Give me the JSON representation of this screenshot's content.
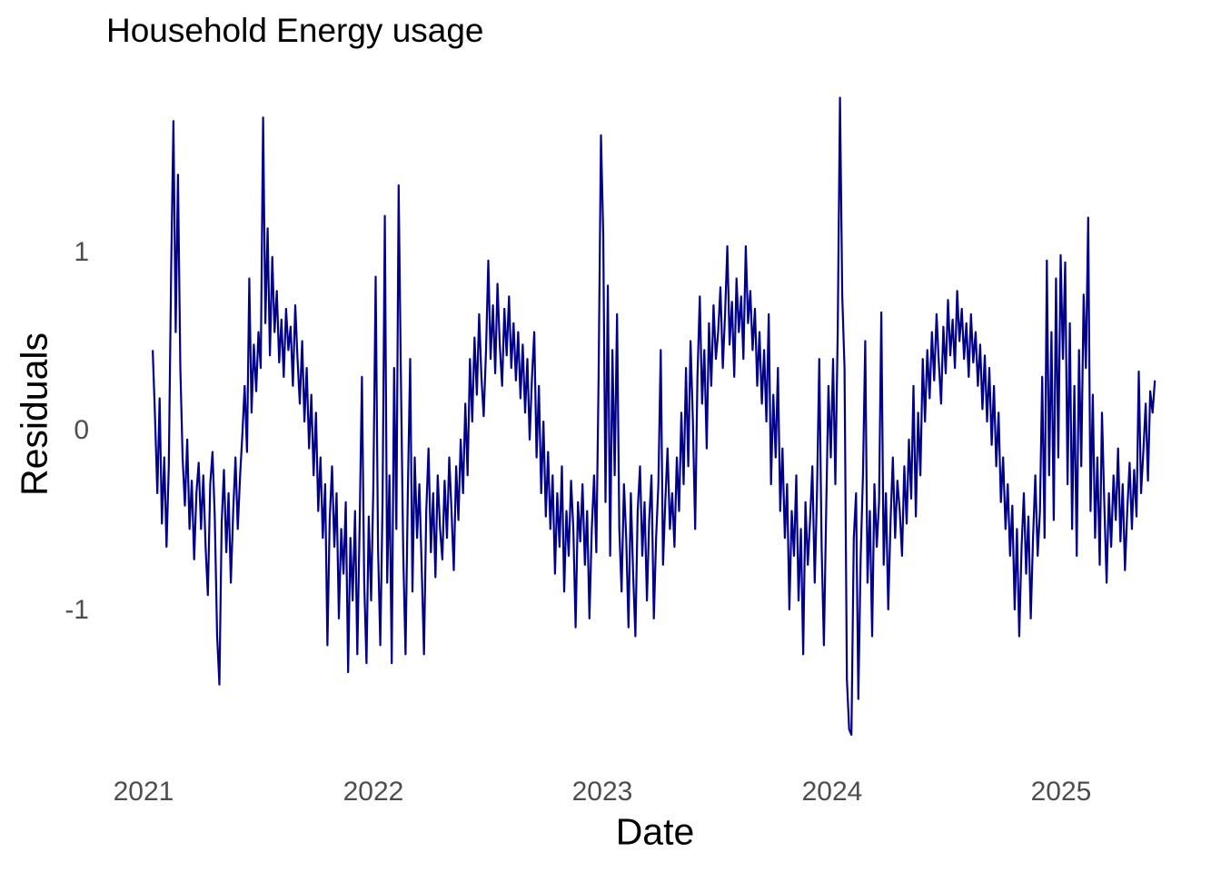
{
  "title": "Household Energy usage",
  "colors": {
    "line": "#00008B",
    "tick_label": "#4d4d4d",
    "text": "#000000",
    "background": "#ffffff"
  },
  "chart_data": {
    "type": "line",
    "title": "Household Energy usage",
    "xlabel": "Date",
    "ylabel": "Residuals",
    "x_tick_values": [
      2021,
      2022,
      2023,
      2024,
      2025
    ],
    "x_tick_labels": [
      "2021",
      "2022",
      "2023",
      "2024",
      "2025"
    ],
    "y_tick_values": [
      1,
      0,
      -1
    ],
    "y_tick_labels": [
      "1",
      "0",
      "-1"
    ],
    "xlim_decimal_years": [
      2020.9,
      2025.55
    ],
    "ylim": [
      -1.75,
      1.9
    ],
    "grid": false,
    "legend": false,
    "line_color": "#00008B",
    "x_start_decimal_year": 2021.04,
    "x_step_decimal_year": 0.01,
    "x_unit": "decimal_year",
    "values": [
      0.45,
      0.08,
      -0.35,
      0.18,
      -0.52,
      -0.15,
      -0.65,
      -0.2,
      0.9,
      1.73,
      0.55,
      1.43,
      0.35,
      -0.15,
      -0.42,
      -0.05,
      -0.55,
      -0.28,
      -0.72,
      -0.35,
      -0.18,
      -0.55,
      -0.25,
      -0.65,
      -0.92,
      -0.3,
      -0.12,
      -0.48,
      -1.15,
      -1.42,
      -0.52,
      -0.22,
      -0.68,
      -0.35,
      -0.85,
      -0.45,
      -0.15,
      -0.55,
      -0.25,
      -0.02,
      0.25,
      -0.12,
      0.85,
      0.1,
      0.48,
      0.22,
      0.55,
      0.35,
      1.75,
      0.6,
      1.13,
      0.42,
      0.97,
      0.55,
      0.78,
      0.38,
      0.62,
      0.3,
      0.68,
      0.45,
      0.58,
      0.25,
      0.7,
      0.4,
      0.15,
      0.5,
      0.05,
      0.35,
      -0.1,
      0.2,
      -0.25,
      0.1,
      -0.45,
      -0.15,
      -0.6,
      -0.3,
      -1.2,
      -0.5,
      -0.2,
      -0.65,
      -0.35,
      -1.05,
      -0.55,
      -0.8,
      -0.4,
      -1.35,
      -0.6,
      -0.95,
      -0.45,
      -1.25,
      -0.55,
      0.3,
      -0.85,
      -1.3,
      -0.48,
      -0.95,
      -0.3,
      0.86,
      -0.65,
      -1.2,
      -0.4,
      1.2,
      -0.85,
      -0.25,
      -1.3,
      0.35,
      -0.55,
      1.37,
      0.25,
      -0.7,
      -1.25,
      -0.35,
      0.4,
      -0.9,
      -0.15,
      -0.6,
      -0.3,
      -0.75,
      -1.25,
      -0.45,
      -0.1,
      -0.68,
      -0.35,
      -0.82,
      -0.25,
      -0.55,
      -0.72,
      -0.28,
      -0.6,
      -0.15,
      -0.45,
      -0.78,
      -0.2,
      -0.5,
      -0.05,
      -0.35,
      0.15,
      -0.25,
      0.4,
      0.05,
      0.52,
      0.2,
      0.65,
      0.3,
      0.08,
      0.45,
      0.95,
      0.4,
      0.7,
      0.32,
      0.82,
      0.48,
      0.25,
      0.68,
      0.42,
      0.75,
      0.35,
      0.6,
      0.28,
      0.55,
      0.18,
      0.48,
      0.1,
      0.4,
      -0.05,
      0.3,
      0.55,
      -0.15,
      0.25,
      -0.35,
      0.05,
      -0.48,
      -0.12,
      -0.55,
      -0.25,
      -0.8,
      -0.35,
      -0.65,
      -0.2,
      -0.9,
      -0.45,
      -0.7,
      -0.28,
      -0.55,
      -1.1,
      -0.4,
      -0.62,
      -0.3,
      -0.75,
      -0.45,
      -1.05,
      -0.55,
      -0.25,
      -0.68,
      0.3,
      1.65,
      1.1,
      -0.4,
      0.81,
      -0.7,
      0.45,
      -0.25,
      0.65,
      -0.55,
      -0.9,
      -0.3,
      -0.6,
      -1.1,
      -0.35,
      -0.8,
      -1.15,
      -0.45,
      -0.2,
      -0.7,
      -0.4,
      -0.95,
      -0.5,
      -0.25,
      -1.05,
      -0.6,
      -0.3,
      0.45,
      -0.75,
      -0.4,
      -0.1,
      -0.55,
      -0.35,
      -0.65,
      -0.15,
      -0.45,
      0.1,
      -0.3,
      0.35,
      -0.2,
      0.5,
      0.05,
      -0.55,
      0.3,
      0.75,
      0.15,
      0.45,
      -0.1,
      0.6,
      0.25,
      0.7,
      0.4,
      0.55,
      0.8,
      0.35,
      0.65,
      1.03,
      0.48,
      0.72,
      0.3,
      0.85,
      0.55,
      0.75,
      0.4,
      1.03,
      0.6,
      0.78,
      0.45,
      0.68,
      0.25,
      0.55,
      0.15,
      0.45,
      0.05,
      0.65,
      -0.3,
      0.2,
      -0.15,
      0.35,
      -0.45,
      -0.1,
      -0.6,
      -0.3,
      -1.0,
      -0.45,
      -0.7,
      -0.25,
      -0.95,
      -0.55,
      -1.25,
      -0.4,
      -0.75,
      -0.5,
      -0.2,
      -0.85,
      -0.35,
      0.4,
      -0.65,
      -1.2,
      -0.45,
      0.25,
      -0.15,
      0.4,
      -0.3,
      0.55,
      1.86,
      0.75,
      0.35,
      -1.39,
      -1.67,
      -1.7,
      -0.6,
      -0.35,
      -1.5,
      -0.7,
      -0.25,
      0.5,
      -0.85,
      -0.45,
      -1.15,
      -0.3,
      -0.65,
      -0.4,
      0.66,
      -0.75,
      -0.35,
      -1.0,
      -0.5,
      -0.15,
      -0.6,
      -0.28,
      -0.45,
      -0.7,
      -0.2,
      -0.52,
      -0.05,
      -0.38,
      0.25,
      -0.48,
      0.1,
      -0.25,
      0.4,
      0.05,
      0.45,
      0.18,
      0.55,
      0.28,
      0.65,
      0.38,
      0.15,
      0.58,
      0.32,
      0.73,
      0.42,
      0.62,
      0.35,
      0.78,
      0.5,
      0.68,
      0.4,
      0.6,
      0.3,
      0.65,
      0.38,
      0.55,
      0.25,
      0.48,
      0.12,
      0.42,
      0.05,
      0.35,
      -0.08,
      0.25,
      -0.2,
      0.1,
      -0.4,
      -0.15,
      -0.55,
      -0.3,
      -0.7,
      -0.42,
      -1.0,
      -0.55,
      -1.15,
      -0.65,
      -0.35,
      -0.8,
      -0.48,
      -1.05,
      -0.6,
      -0.25,
      -0.7,
      -0.45,
      0.3,
      -0.6,
      0.95,
      -0.25,
      0.55,
      -0.5,
      0.85,
      -0.15,
      0.98,
      0.4,
      0.94,
      -0.3,
      0.6,
      -0.55,
      0.25,
      -0.7,
      0.45,
      -0.2,
      0.76,
      0.35,
      1.19,
      -0.45,
      0.2,
      -0.6,
      -0.15,
      -0.75,
      0.1,
      -0.4,
      -0.85,
      -0.35,
      -0.65,
      -0.25,
      -0.5,
      -0.1,
      -0.62,
      -0.3,
      -0.78,
      -0.45,
      -0.18,
      -0.55,
      -0.22,
      -0.48,
      0.33,
      -0.35,
      -0.12,
      0.15,
      -0.28,
      0.22,
      0.1,
      0.28
    ]
  }
}
